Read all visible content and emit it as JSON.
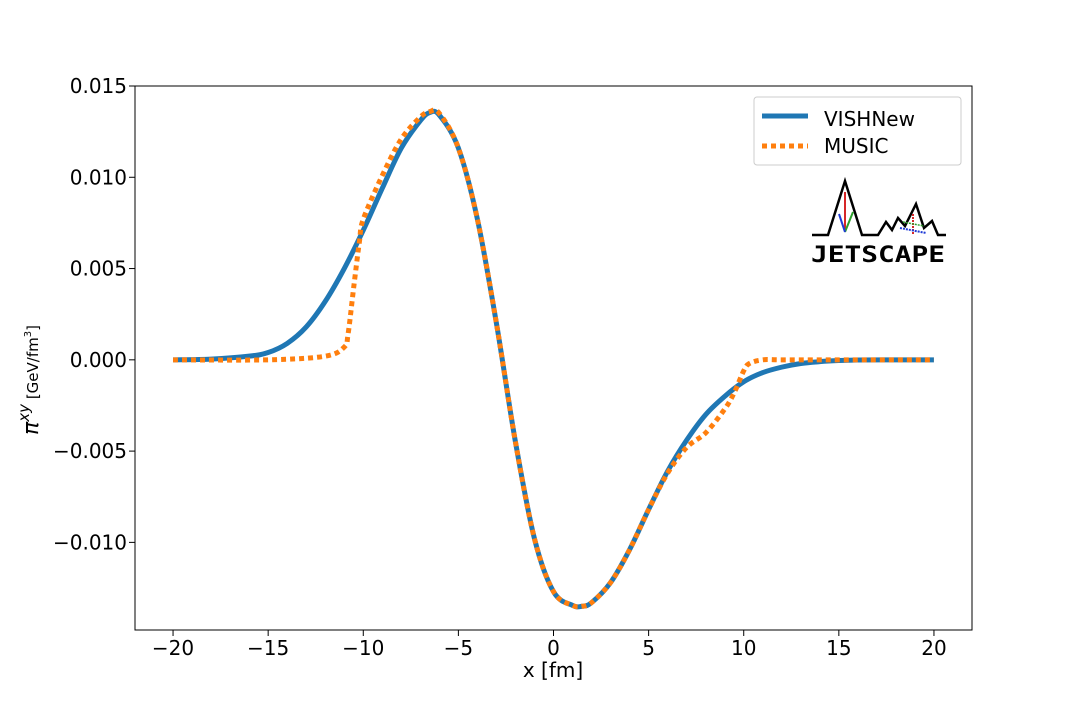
{
  "chart_data": {
    "type": "line",
    "xlabel": "x [fm]",
    "ylabel_main": "π",
    "ylabel_sup": "xy",
    "ylabel_unit": "[GeV/fm",
    "ylabel_unit_sup": "3",
    "ylabel_unit_end": "]",
    "xlim": [
      -22,
      22
    ],
    "ylim": [
      -0.0148,
      0.015
    ],
    "xticks": [
      -20,
      -15,
      -10,
      -5,
      0,
      5,
      10,
      15,
      20
    ],
    "xtick_labels": [
      "−20",
      "−15",
      "−10",
      "−5",
      "0",
      "5",
      "10",
      "15",
      "20"
    ],
    "yticks": [
      -0.01,
      -0.005,
      0.0,
      0.005,
      0.01,
      0.015
    ],
    "ytick_labels": [
      "−0.010",
      "−0.005",
      "0.000",
      "0.005",
      "0.010",
      "0.015"
    ],
    "grid": false,
    "legend_position": "top-right",
    "series": [
      {
        "name": "VISHNew",
        "color": "#1f77b4",
        "style": "solid",
        "x": [
          -20,
          -18,
          -16,
          -15,
          -14,
          -13,
          -12,
          -11,
          -10,
          -9,
          -8,
          -7,
          -6.5,
          -6,
          -5,
          -4,
          -3,
          -2,
          -1,
          0,
          1,
          1.5,
          2,
          3,
          4,
          5,
          6,
          7,
          8,
          9,
          10,
          11,
          12,
          13,
          14,
          15,
          16,
          18,
          20
        ],
        "y": [
          0.0,
          4e-05,
          0.0002,
          0.0004,
          0.0009,
          0.0018,
          0.0032,
          0.005,
          0.0071,
          0.0094,
          0.0116,
          0.0131,
          0.01355,
          0.0134,
          0.0116,
          0.0077,
          0.002,
          -0.0045,
          -0.0098,
          -0.0127,
          -0.01345,
          -0.0135,
          -0.0133,
          -0.0122,
          -0.0104,
          -0.0082,
          -0.0061,
          -0.0044,
          -0.003,
          -0.002,
          -0.0012,
          -0.0007,
          -0.0004,
          -0.0002,
          -0.0001,
          -4e-05,
          -1e-05,
          0.0,
          0.0
        ]
      },
      {
        "name": "MUSIC",
        "color": "#ff7f0e",
        "style": "dotted",
        "x": [
          -20,
          -15,
          -12,
          -11,
          -10.8,
          -10.5,
          -10.2,
          -10,
          -9,
          -8,
          -7,
          -6.5,
          -6,
          -5,
          -4,
          -3,
          -2,
          -1,
          0,
          1,
          1.5,
          2,
          3,
          4,
          5,
          6,
          7,
          8,
          9,
          9.5,
          10,
          10.3,
          11,
          12,
          15,
          20
        ],
        "y": [
          0.0,
          0.0,
          0.0002,
          0.0007,
          0.0014,
          0.004,
          0.0065,
          0.0077,
          0.0101,
          0.0121,
          0.0133,
          0.0136,
          0.0135,
          0.0116,
          0.0077,
          0.002,
          -0.0045,
          -0.0098,
          -0.0127,
          -0.01345,
          -0.0135,
          -0.0133,
          -0.0122,
          -0.0104,
          -0.0082,
          -0.0062,
          -0.0048,
          -0.004,
          -0.0027,
          -0.0018,
          -0.0006,
          -0.0002,
          0.0,
          0.0,
          0.0,
          0.0
        ]
      }
    ]
  },
  "logo": {
    "text": "JETSCAPE"
  }
}
